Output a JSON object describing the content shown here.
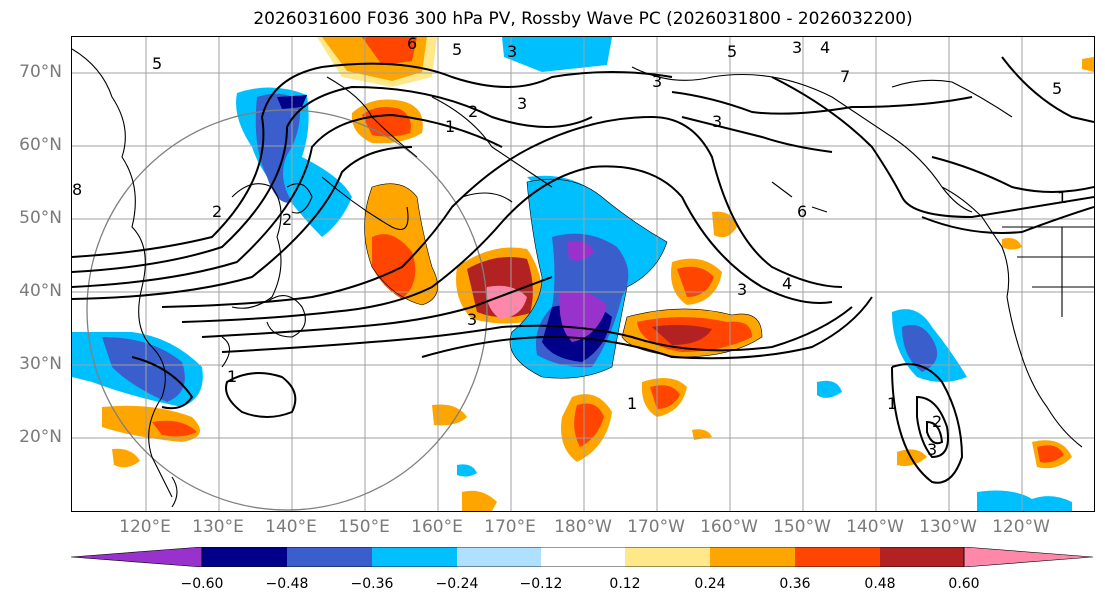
{
  "title": "2026031600 F036 300 hPa PV, Rossby Wave PC (2026031800 - 2026032200)",
  "lat_labels": [
    "70°N",
    "60°N",
    "50°N",
    "40°N",
    "30°N",
    "20°N"
  ],
  "lon_labels": [
    "120°E",
    "130°E",
    "140°E",
    "150°E",
    "160°E",
    "170°E",
    "180°W",
    "170°W",
    "160°W",
    "150°W",
    "140°W",
    "130°W",
    "120°W"
  ],
  "colorbar": {
    "colors": [
      "#9932cc",
      "#00008b",
      "#3a5fcd",
      "#00bfff",
      "#b0e0ff",
      "#ffffff",
      "#ffe88a",
      "#ffa500",
      "#ff4500",
      "#b22222",
      "#ff88aa"
    ],
    "ticks": [
      "−0.60",
      "−0.48",
      "−0.36",
      "−0.24",
      "−0.12",
      "0.12",
      "0.24",
      "0.36",
      "0.48",
      "0.60"
    ]
  },
  "contour_labels": [
    "6",
    "5",
    "3",
    "3",
    "4",
    "5",
    "3",
    "3",
    "2",
    "1",
    "7",
    "5",
    "5",
    "8",
    "6",
    "3",
    "1",
    "2",
    "1",
    "2",
    "3",
    "4",
    "3",
    "1",
    "1",
    "2",
    "3"
  ],
  "palette": {
    "pos_low": "#ffe88a",
    "pos_mid": "#ffa500",
    "pos_high": "#ff4500",
    "pos_max": "#b22222",
    "pos_ext": "#ff88aa",
    "neg_low": "#b0e0ff",
    "neg_mid": "#00bfff",
    "neg_high": "#3a5fcd",
    "neg_max": "#00008b",
    "neg_ext": "#9932cc"
  }
}
